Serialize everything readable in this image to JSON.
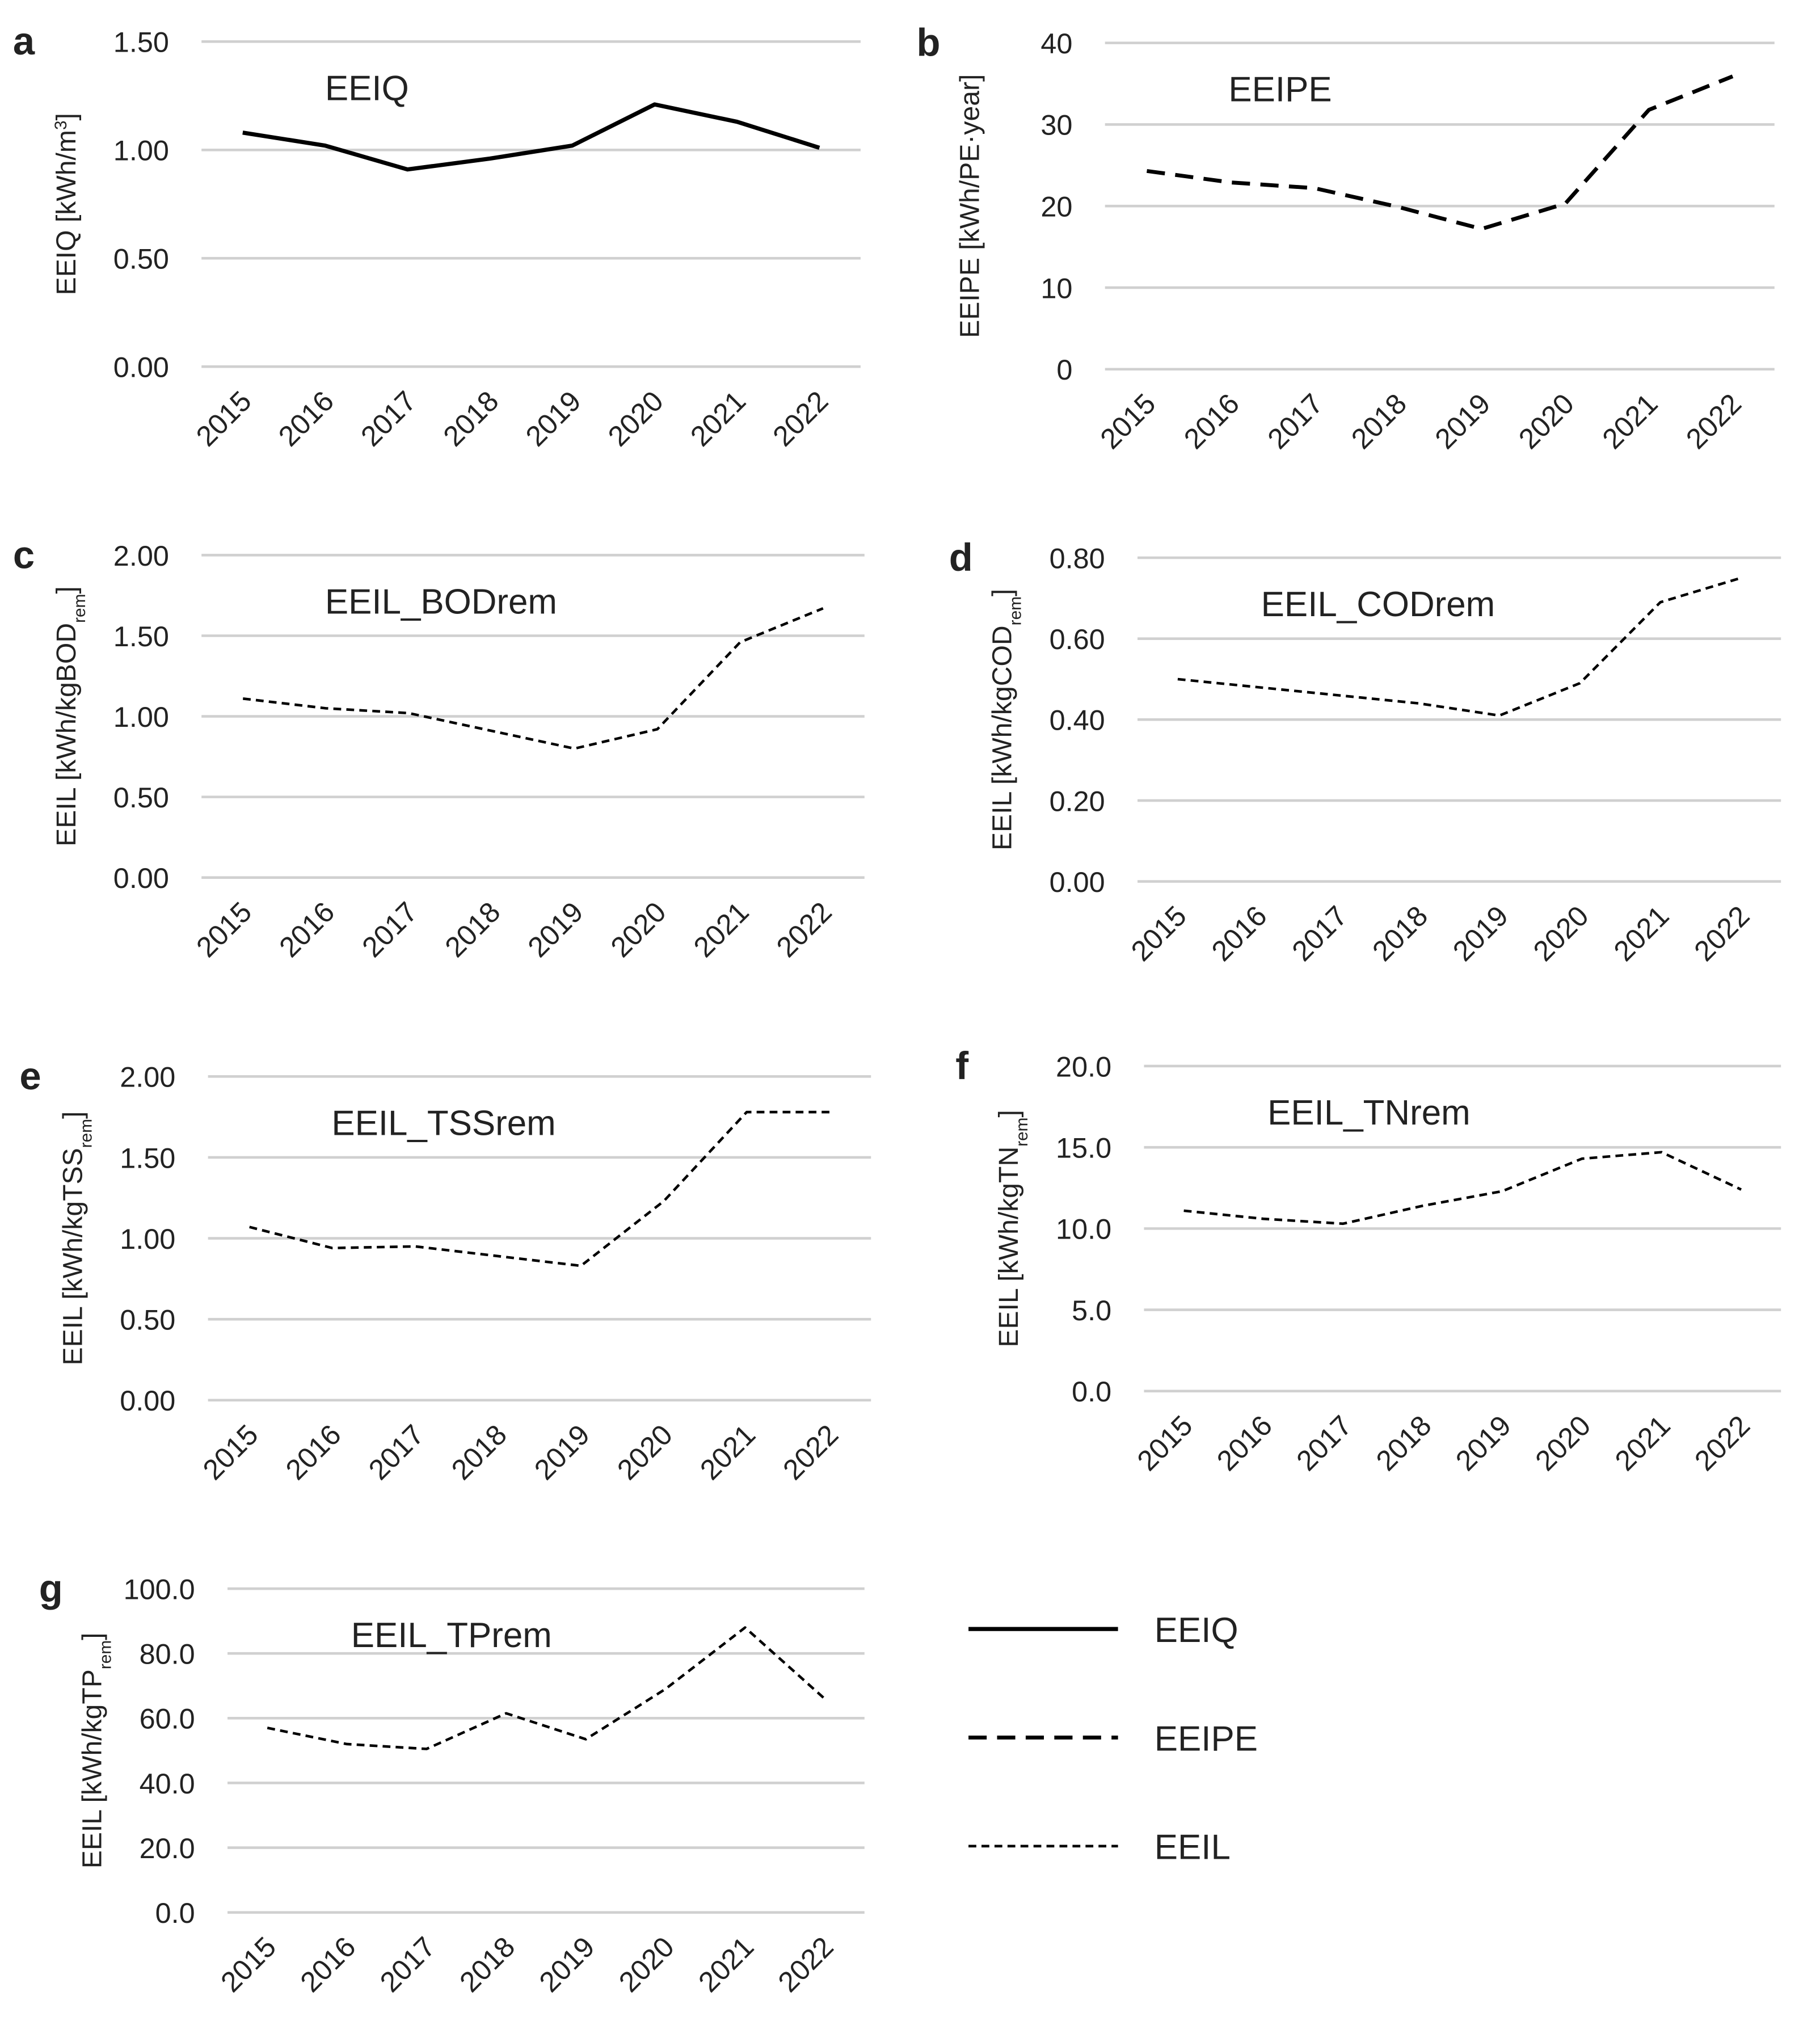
{
  "chart_data": [
    {
      "type": "line",
      "panel": "a",
      "title": "EEIQ",
      "ylabel": [
        {
          "text": "EEIQ [kWh/m"
        },
        {
          "text": "3",
          "sup": true
        },
        {
          "text": "]"
        }
      ],
      "categories": [
        "2015",
        "2016",
        "2017",
        "2018",
        "2019",
        "2020",
        "2021",
        "2022"
      ],
      "values": [
        1.08,
        1.02,
        0.91,
        0.96,
        1.02,
        1.21,
        1.13,
        1.01
      ],
      "color": "#000000",
      "line_style": "solid",
      "grid": true,
      "ylim": [
        0,
        1.5
      ],
      "yticks": [
        {
          "value": 0,
          "label": "0.00"
        },
        {
          "value": 0.5,
          "label": "0.50"
        },
        {
          "value": 1,
          "label": "1.00"
        },
        {
          "value": 1.5,
          "label": "1.50"
        }
      ]
    },
    {
      "type": "line",
      "panel": "b",
      "title": "EEIPE",
      "ylabel": [
        {
          "text": "EEIPE [kWh/PE·year]"
        }
      ],
      "categories": [
        "2015",
        "2016",
        "2017",
        "2018",
        "2019",
        "2020",
        "2021",
        "2022"
      ],
      "values": [
        24.3,
        22.9,
        22.2,
        19.9,
        17.2,
        20.3,
        31.8,
        35.9
      ],
      "color": "#000000",
      "line_style": "long-dash",
      "grid": true,
      "ylim": [
        0,
        40
      ],
      "yticks": [
        0,
        10,
        20,
        30,
        40
      ]
    },
    {
      "type": "line",
      "panel": "c",
      "title": "EEIL_BODrem",
      "ylabel": [
        {
          "text": "EEIL [kWh/kgBOD"
        },
        {
          "text": "rem",
          "sub": true
        },
        {
          "text": "]"
        }
      ],
      "categories": [
        "2015",
        "2016",
        "2017",
        "2018",
        "2019",
        "2020",
        "2021",
        "2022"
      ],
      "values": [
        1.11,
        1.05,
        1.02,
        0.91,
        0.8,
        0.92,
        1.46,
        1.67
      ],
      "color": "#000000",
      "line_style": "short-dash",
      "grid": true,
      "ylim": [
        0,
        2
      ],
      "yticks": [
        {
          "value": 0,
          "label": "0.00"
        },
        {
          "value": 0.5,
          "label": "0.50"
        },
        {
          "value": 1,
          "label": "1.00"
        },
        {
          "value": 1.5,
          "label": "1.50"
        },
        {
          "value": 2,
          "label": "2.00"
        }
      ]
    },
    {
      "type": "line",
      "panel": "d",
      "title": "EEIL_CODrem",
      "ylabel": [
        {
          "text": "EEIL [kWh/kgCOD"
        },
        {
          "text": "rem",
          "sub": true
        },
        {
          "text": "]"
        }
      ],
      "categories": [
        "2015",
        "2016",
        "2017",
        "2018",
        "2019",
        "2020",
        "2021",
        "2022"
      ],
      "values": [
        0.5,
        0.48,
        0.46,
        0.44,
        0.41,
        0.49,
        0.69,
        0.75
      ],
      "color": "#000000",
      "line_style": "short-dash",
      "grid": true,
      "ylim": [
        0,
        0.8
      ],
      "yticks": [
        {
          "value": 0,
          "label": "0.00"
        },
        {
          "value": 0.2,
          "label": "0.20"
        },
        {
          "value": 0.4,
          "label": "0.40"
        },
        {
          "value": 0.6,
          "label": "0.60"
        },
        {
          "value": 0.8,
          "label": "0.80"
        }
      ]
    },
    {
      "type": "line",
      "panel": "e",
      "title": "EEIL_TSSrem",
      "ylabel": [
        {
          "text": "EEIL [kWh/kgTSS"
        },
        {
          "text": "rem",
          "sub": true
        },
        {
          "text": "]"
        }
      ],
      "categories": [
        "2015",
        "2016",
        "2017",
        "2018",
        "2019",
        "2020",
        "2021",
        "2022"
      ],
      "values": [
        1.07,
        0.94,
        0.95,
        0.89,
        0.83,
        1.23,
        1.78,
        1.78
      ],
      "color": "#000000",
      "line_style": "short-dash",
      "grid": true,
      "ylim": [
        0,
        2
      ],
      "yticks": [
        {
          "value": 0,
          "label": "0.00"
        },
        {
          "value": 0.5,
          "label": "0.50"
        },
        {
          "value": 1,
          "label": "1.00"
        },
        {
          "value": 1.5,
          "label": "1.50"
        },
        {
          "value": 2,
          "label": "2.00"
        }
      ]
    },
    {
      "type": "line",
      "panel": "f",
      "title": "EEIL_TNrem",
      "ylabel": [
        {
          "text": "EEIL [kWh/kgTN"
        },
        {
          "text": "rem",
          "sub": true
        },
        {
          "text": "]"
        }
      ],
      "categories": [
        "2015",
        "2016",
        "2017",
        "2018",
        "2019",
        "2020",
        "2021",
        "2022"
      ],
      "values": [
        11.1,
        10.6,
        10.3,
        11.4,
        12.3,
        14.3,
        14.7,
        12.4
      ],
      "color": "#000000",
      "line_style": "short-dash",
      "grid": true,
      "ylim": [
        0,
        20
      ],
      "yticks": [
        {
          "value": 0,
          "label": "0.0"
        },
        {
          "value": 5,
          "label": "5.0"
        },
        {
          "value": 10,
          "label": "10.0"
        },
        {
          "value": 15,
          "label": "15.0"
        },
        {
          "value": 20,
          "label": "20.0"
        }
      ]
    },
    {
      "type": "line",
      "panel": "g",
      "title": "EEIL_TPrem",
      "ylabel": [
        {
          "text": "EEIL [kWh/kgTP"
        },
        {
          "text": "rem",
          "sub": true
        },
        {
          "text": "]"
        }
      ],
      "categories": [
        "2015",
        "2016",
        "2017",
        "2018",
        "2019",
        "2020",
        "2021",
        "2022"
      ],
      "values": [
        57,
        52,
        50.5,
        61.5,
        53.5,
        69,
        88,
        66
      ],
      "color": "#000000",
      "line_style": "short-dash",
      "grid": true,
      "ylim": [
        0,
        100
      ],
      "yticks": [
        {
          "value": 0,
          "label": "0.0"
        },
        {
          "value": 20,
          "label": "20.0"
        },
        {
          "value": 40,
          "label": "40.0"
        },
        {
          "value": 60,
          "label": "60.0"
        },
        {
          "value": 80,
          "label": "80.0"
        },
        {
          "value": 100,
          "label": "100.0"
        }
      ]
    }
  ],
  "legend": [
    {
      "label": "EEIQ",
      "line_style": "solid",
      "color": "#000000"
    },
    {
      "label": "EEIPE",
      "line_style": "long-dash",
      "color": "#000000"
    },
    {
      "label": "EEIL",
      "line_style": "short-dash",
      "color": "#000000"
    }
  ]
}
